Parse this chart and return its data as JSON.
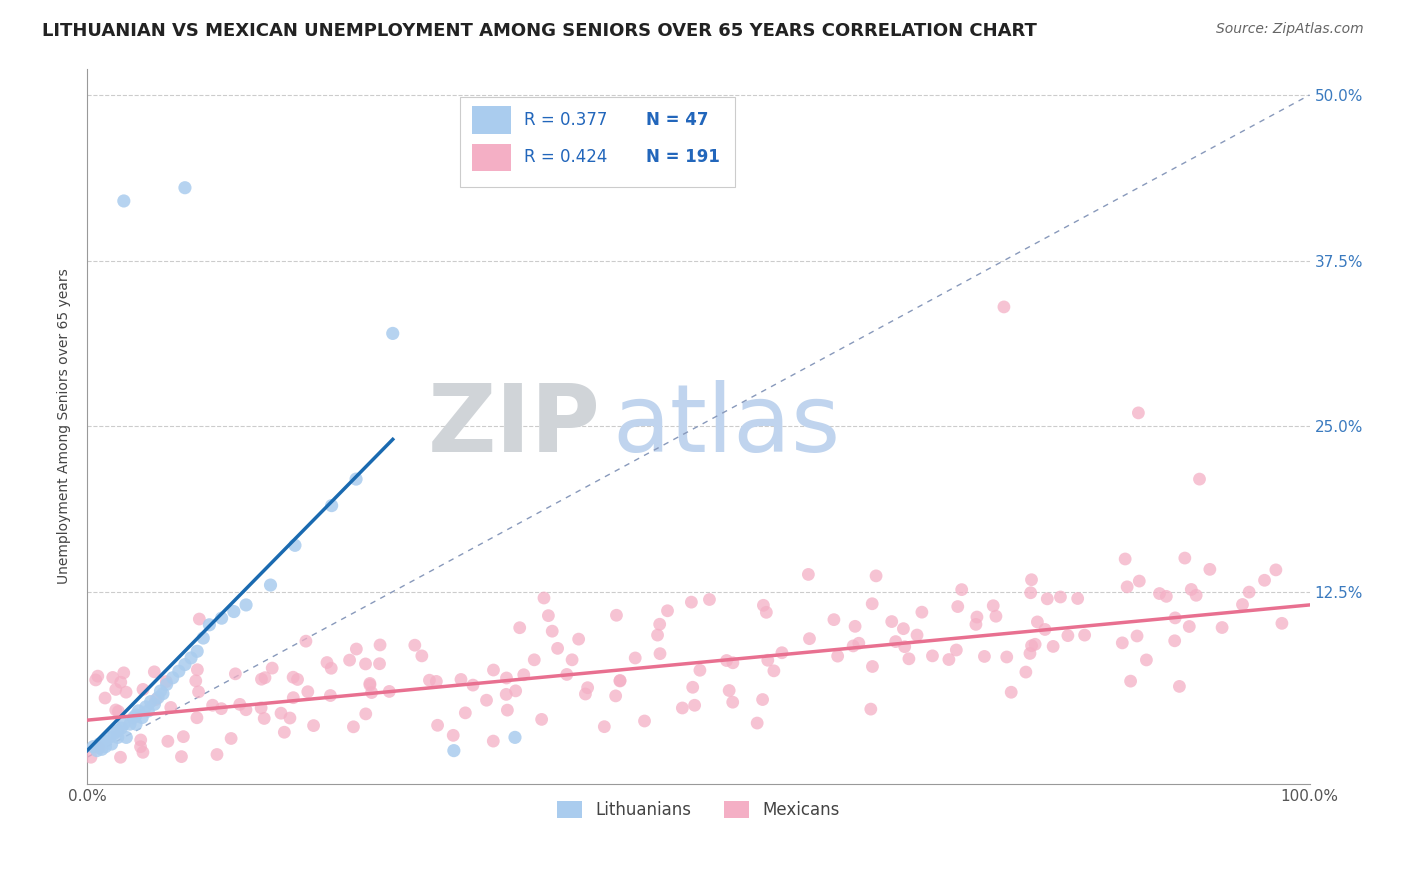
{
  "title": "LITHUANIAN VS MEXICAN UNEMPLOYMENT AMONG SENIORS OVER 65 YEARS CORRELATION CHART",
  "source": "Source: ZipAtlas.com",
  "ylabel": "Unemployment Among Seniors over 65 years",
  "xlim": [
    0,
    1.0
  ],
  "ylim": [
    -0.02,
    0.52
  ],
  "yticks": [
    0,
    0.125,
    0.25,
    0.375,
    0.5
  ],
  "yticklabels_right": [
    "",
    "12.5%",
    "25.0%",
    "37.5%",
    "50.0%"
  ],
  "blue_R": 0.377,
  "blue_N": 47,
  "pink_R": 0.424,
  "pink_N": 191,
  "blue_color": "#aaccee",
  "pink_color": "#f4afc5",
  "blue_line_color": "#1a6ab0",
  "pink_line_color": "#e87090",
  "blue_label": "Lithuanians",
  "pink_label": "Mexicans",
  "title_fontsize": 13,
  "label_fontsize": 10,
  "tick_fontsize": 11,
  "legend_color": "#2266bb",
  "watermark_ZIP_color": "#d0d4d8",
  "watermark_atlas_color": "#c0d4ee",
  "background_color": "#ffffff",
  "seed": 42,
  "blue_x": [
    0.005,
    0.008,
    0.01,
    0.012,
    0.015,
    0.015,
    0.018,
    0.02,
    0.022,
    0.025,
    0.025,
    0.028,
    0.03,
    0.032,
    0.035,
    0.038,
    0.04,
    0.04,
    0.042,
    0.045,
    0.048,
    0.05,
    0.052,
    0.055,
    0.058,
    0.06,
    0.062,
    0.065,
    0.07,
    0.075,
    0.08,
    0.085,
    0.09,
    0.095,
    0.1,
    0.11,
    0.12,
    0.13,
    0.15,
    0.17,
    0.2,
    0.22,
    0.25,
    0.3,
    0.35,
    0.03,
    0.08
  ],
  "blue_y": [
    0.008,
    0.005,
    0.01,
    0.006,
    0.008,
    0.012,
    0.015,
    0.01,
    0.018,
    0.02,
    0.015,
    0.022,
    0.025,
    0.015,
    0.025,
    0.03,
    0.025,
    0.032,
    0.035,
    0.03,
    0.038,
    0.035,
    0.042,
    0.04,
    0.045,
    0.05,
    0.048,
    0.055,
    0.06,
    0.065,
    0.07,
    0.075,
    0.08,
    0.09,
    0.1,
    0.105,
    0.11,
    0.115,
    0.13,
    0.16,
    0.19,
    0.21,
    0.32,
    0.005,
    0.015,
    0.42,
    0.43
  ],
  "blue_line_x": [
    0.0,
    0.25
  ],
  "blue_line_y": [
    0.005,
    0.24
  ],
  "pink_line_x": [
    0.0,
    1.0
  ],
  "pink_line_y": [
    0.028,
    0.115
  ]
}
